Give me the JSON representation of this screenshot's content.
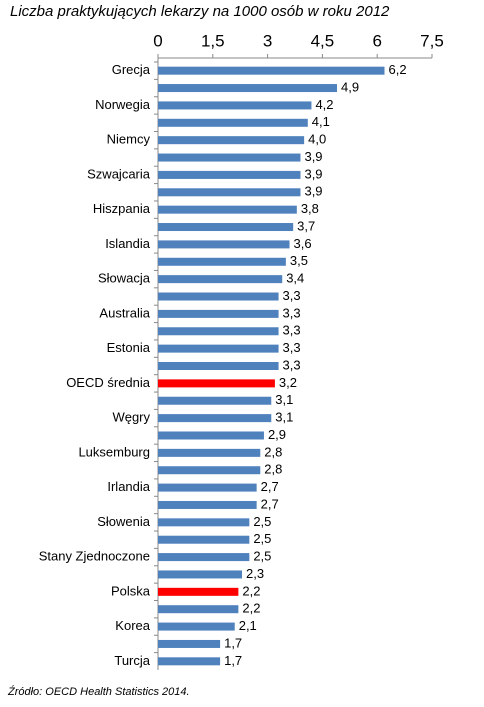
{
  "chart_data": {
    "type": "hbar",
    "title": "Liczba praktykujących lekarzy na 1000 osób w roku 2012",
    "source": "Źródło: OECD Health Statistics 2014.",
    "categories": [
      "Grecja",
      null,
      "Norwegia",
      null,
      "Niemcy",
      null,
      "Szwajcaria",
      null,
      "Hiszpania",
      null,
      "Islandia",
      null,
      "Słowacja",
      null,
      "Australia",
      null,
      "Estonia",
      null,
      "OECD średnia",
      null,
      "Węgry",
      null,
      "Luksemburg",
      null,
      "Irlandia",
      null,
      "Słowenia",
      null,
      "Stany Zjednoczone",
      null,
      "Polska",
      null,
      "Korea",
      null,
      "Turcja"
    ],
    "values": [
      6.2,
      4.9,
      4.2,
      4.1,
      4.0,
      3.9,
      3.9,
      3.9,
      3.8,
      3.7,
      3.6,
      3.5,
      3.4,
      3.3,
      3.3,
      3.3,
      3.3,
      3.3,
      3.2,
      3.1,
      3.1,
      2.9,
      2.8,
      2.8,
      2.7,
      2.7,
      2.5,
      2.5,
      2.5,
      2.3,
      2.2,
      2.2,
      2.1,
      1.7,
      1.7
    ],
    "value_labels": [
      "6,2",
      "4,9",
      "4,2",
      "4,1",
      "4,0",
      "3,9",
      "3,9",
      "3,9",
      "3,8",
      "3,7",
      "3,6",
      "3,5",
      "3,4",
      "3,3",
      "3,3",
      "3,3",
      "3,3",
      "3,3",
      "3,2",
      "3,1",
      "3,1",
      "2,9",
      "2,8",
      "2,8",
      "2,7",
      "2,7",
      "2,5",
      "2,5",
      "2,5",
      "2,3",
      "2,2",
      "2,2",
      "2,1",
      "1,7",
      "1,7"
    ],
    "colors": [
      "#4f81bd",
      "#4f81bd",
      "#4f81bd",
      "#4f81bd",
      "#4f81bd",
      "#4f81bd",
      "#4f81bd",
      "#4f81bd",
      "#4f81bd",
      "#4f81bd",
      "#4f81bd",
      "#4f81bd",
      "#4f81bd",
      "#4f81bd",
      "#4f81bd",
      "#4f81bd",
      "#4f81bd",
      "#4f81bd",
      "#ff0000",
      "#4f81bd",
      "#4f81bd",
      "#4f81bd",
      "#4f81bd",
      "#4f81bd",
      "#4f81bd",
      "#4f81bd",
      "#4f81bd",
      "#4f81bd",
      "#4f81bd",
      "#4f81bd",
      "#ff0000",
      "#4f81bd",
      "#4f81bd",
      "#4f81bd",
      "#4f81bd"
    ],
    "xlim": [
      0,
      7.5
    ],
    "xticks": [
      0,
      {
        "value": 1.5,
        "label": "1,5"
      },
      3,
      {
        "value": 4.5,
        "label": "4,5"
      },
      6,
      {
        "value": 7.5,
        "label": "7,5"
      }
    ]
  }
}
